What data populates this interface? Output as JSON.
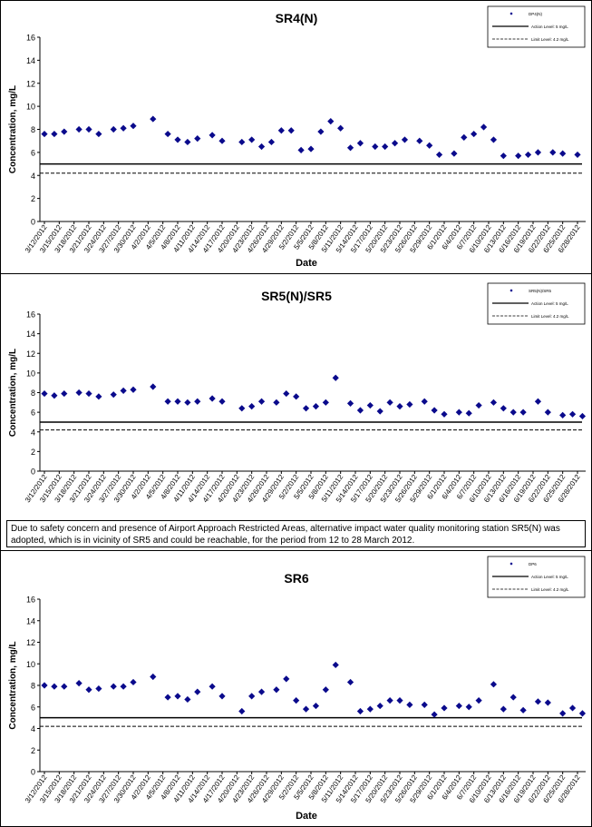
{
  "note": "Due to safety concern and presence of Airport Approach Restricted Areas, alternative impact water quality monitoring station SR5(N) was adopted, which is in vicinity of SR5 and could be reachable, for the period from 12 to 28 March 2012.",
  "colors": {
    "marker": "#0a0a8c",
    "line": "#000000",
    "frame": "#000000"
  },
  "chart_data": [
    {
      "type": "scatter",
      "title": "SR4(N)",
      "xlabel": "Date",
      "ylabel": "Concentration, mg/L",
      "ylim": [
        0,
        16
      ],
      "yticks": [
        0,
        2,
        4,
        6,
        8,
        10,
        12,
        14,
        16
      ],
      "grid": false,
      "legend_position": "top-right",
      "legend": [
        "DP4(N)",
        "Action Level: 5 mg/L",
        "Limit Level: 4.2 mg/L"
      ],
      "action_level": 5,
      "limit_level": 4.2,
      "x_ticks": [
        "3/12/2012",
        "3/15/2012",
        "3/18/2012",
        "3/21/2012",
        "3/24/2012",
        "3/27/2012",
        "3/30/2012",
        "4/2/2012",
        "4/5/2012",
        "4/8/2012",
        "4/11/2012",
        "4/14/2012",
        "4/17/2012",
        "4/20/2012",
        "4/23/2012",
        "4/26/2012",
        "4/29/2012",
        "5/2/2012",
        "5/5/2012",
        "5/8/2012",
        "5/11/2012",
        "5/14/2012",
        "5/17/2012",
        "5/20/2012",
        "5/23/2012",
        "5/26/2012",
        "5/29/2012",
        "6/1/2012",
        "6/4/2012",
        "6/7/2012",
        "6/10/2012",
        "6/13/2012",
        "6/16/2012",
        "6/19/2012",
        "6/22/2012",
        "6/25/2012",
        "6/28/2012"
      ],
      "series": [
        {
          "name": "DP4(N)",
          "x": [
            "3/12/2012",
            "3/14/2012",
            "3/16/2012",
            "3/19/2012",
            "3/21/2012",
            "3/23/2012",
            "3/26/2012",
            "3/28/2012",
            "3/30/2012",
            "4/3/2012",
            "4/6/2012",
            "4/8/2012",
            "4/10/2012",
            "4/12/2012",
            "4/15/2012",
            "4/17/2012",
            "4/21/2012",
            "4/23/2012",
            "4/25/2012",
            "4/27/2012",
            "4/29/2012",
            "5/1/2012",
            "5/3/2012",
            "5/5/2012",
            "5/7/2012",
            "5/9/2012",
            "5/11/2012",
            "5/13/2012",
            "5/15/2012",
            "5/18/2012",
            "5/20/2012",
            "5/22/2012",
            "5/24/2012",
            "5/27/2012",
            "5/29/2012",
            "5/31/2012",
            "6/3/2012",
            "6/5/2012",
            "6/7/2012",
            "6/9/2012",
            "6/11/2012",
            "6/13/2012",
            "6/16/2012",
            "6/18/2012",
            "6/20/2012",
            "6/23/2012",
            "6/25/2012",
            "6/28/2012"
          ],
          "values": [
            7.6,
            7.6,
            7.8,
            8.0,
            8.0,
            7.6,
            8.0,
            8.1,
            8.3,
            8.9,
            7.6,
            7.1,
            6.9,
            7.2,
            7.5,
            7.0,
            6.9,
            7.1,
            6.5,
            6.9,
            7.9,
            7.9,
            6.2,
            6.3,
            7.8,
            8.7,
            8.1,
            6.4,
            6.8,
            6.5,
            6.5,
            6.8,
            7.1,
            7.0,
            6.6,
            5.8,
            5.9,
            7.3,
            7.6,
            8.2,
            7.1,
            5.7,
            5.7,
            5.8,
            6.0,
            6.0,
            5.9,
            5.8
          ]
        }
      ]
    },
    {
      "type": "scatter",
      "title": "SR5(N)/SR5",
      "xlabel": "",
      "ylabel": "Concentration, mg/L",
      "ylim": [
        0,
        16
      ],
      "yticks": [
        0,
        2,
        4,
        6,
        8,
        10,
        12,
        14,
        16
      ],
      "grid": false,
      "legend_position": "top-right",
      "legend": [
        "SR5(N)/SR5",
        "Action Level: 5 mg/L",
        "Limit Level: 4.2 mg/L"
      ],
      "action_level": 5,
      "limit_level": 4.2,
      "x_ticks": [
        "3/12/2012",
        "3/15/2012",
        "3/18/2012",
        "3/21/2012",
        "3/24/2012",
        "3/27/2012",
        "3/30/2012",
        "4/2/2012",
        "4/5/2012",
        "4/8/2012",
        "4/11/2012",
        "4/14/2012",
        "4/17/2012",
        "4/20/2012",
        "4/23/2012",
        "4/26/2012",
        "4/29/2012",
        "5/2/2012",
        "5/5/2012",
        "5/8/2012",
        "5/11/2012",
        "5/14/2012",
        "5/17/2012",
        "5/20/2012",
        "5/23/2012",
        "5/26/2012",
        "5/29/2012",
        "6/1/2012",
        "6/4/2012",
        "6/7/2012",
        "6/10/2012",
        "6/13/2012",
        "6/16/2012",
        "6/19/2012",
        "6/22/2012",
        "6/25/2012",
        "6/28/2012"
      ],
      "series": [
        {
          "name": "SR5(N)/SR5",
          "x": [
            "3/12/2012",
            "3/14/2012",
            "3/16/2012",
            "3/19/2012",
            "3/21/2012",
            "3/23/2012",
            "3/26/2012",
            "3/28/2012",
            "3/30/2012",
            "4/3/2012",
            "4/6/2012",
            "4/8/2012",
            "4/10/2012",
            "4/12/2012",
            "4/15/2012",
            "4/17/2012",
            "4/21/2012",
            "4/23/2012",
            "4/25/2012",
            "4/28/2012",
            "4/30/2012",
            "5/2/2012",
            "5/4/2012",
            "5/6/2012",
            "5/8/2012",
            "5/10/2012",
            "5/13/2012",
            "5/15/2012",
            "5/17/2012",
            "5/19/2012",
            "5/21/2012",
            "5/23/2012",
            "5/25/2012",
            "5/28/2012",
            "5/30/2012",
            "6/1/2012",
            "6/4/2012",
            "6/6/2012",
            "6/8/2012",
            "6/11/2012",
            "6/13/2012",
            "6/15/2012",
            "6/17/2012",
            "6/20/2012",
            "6/22/2012",
            "6/25/2012",
            "6/27/2012",
            "6/29/2012"
          ],
          "values": [
            7.9,
            7.7,
            7.9,
            8.0,
            7.9,
            7.6,
            7.8,
            8.2,
            8.3,
            8.6,
            7.1,
            7.1,
            7.0,
            7.1,
            7.4,
            7.1,
            6.4,
            6.6,
            7.1,
            7.0,
            7.9,
            7.6,
            6.4,
            6.6,
            7.0,
            9.5,
            6.9,
            6.2,
            6.7,
            6.1,
            7.0,
            6.6,
            6.8,
            7.1,
            6.2,
            5.8,
            6.0,
            5.9,
            6.7,
            7.0,
            6.4,
            6.0,
            6.0,
            7.1,
            6.0,
            5.7,
            5.8,
            5.6
          ]
        }
      ]
    },
    {
      "type": "scatter",
      "title": "SR6",
      "xlabel": "Date",
      "ylabel": "Concentration, mg/L",
      "ylim": [
        0,
        16
      ],
      "yticks": [
        0,
        2,
        4,
        6,
        8,
        10,
        12,
        14,
        16
      ],
      "grid": false,
      "legend_position": "top-right",
      "legend": [
        "DP6",
        "Action Level: 5 mg/L",
        "Limit Level: 4.2 mg/L"
      ],
      "action_level": 5,
      "limit_level": 4.2,
      "x_ticks": [
        "3/12/2012",
        "3/15/2012",
        "3/18/2012",
        "3/21/2012",
        "3/24/2012",
        "3/27/2012",
        "3/30/2012",
        "4/2/2012",
        "4/5/2012",
        "4/8/2012",
        "4/11/2012",
        "4/14/2012",
        "4/17/2012",
        "4/20/2012",
        "4/23/2012",
        "4/26/2012",
        "4/29/2012",
        "5/2/2012",
        "5/5/2012",
        "5/8/2012",
        "5/11/2012",
        "5/14/2012",
        "5/17/2012",
        "5/20/2012",
        "5/23/2012",
        "5/26/2012",
        "5/29/2012",
        "6/1/2012",
        "6/4/2012",
        "6/7/2012",
        "6/10/2012",
        "6/13/2012",
        "6/16/2012",
        "6/19/2012",
        "6/22/2012",
        "6/25/2012",
        "6/28/2012"
      ],
      "series": [
        {
          "name": "DP6",
          "x": [
            "3/12/2012",
            "3/14/2012",
            "3/16/2012",
            "3/19/2012",
            "3/21/2012",
            "3/23/2012",
            "3/26/2012",
            "3/28/2012",
            "3/30/2012",
            "4/3/2012",
            "4/6/2012",
            "4/8/2012",
            "4/10/2012",
            "4/12/2012",
            "4/15/2012",
            "4/17/2012",
            "4/21/2012",
            "4/23/2012",
            "4/25/2012",
            "4/28/2012",
            "4/30/2012",
            "5/2/2012",
            "5/4/2012",
            "5/6/2012",
            "5/8/2012",
            "5/10/2012",
            "5/13/2012",
            "5/15/2012",
            "5/17/2012",
            "5/19/2012",
            "5/21/2012",
            "5/23/2012",
            "5/25/2012",
            "5/28/2012",
            "5/30/2012",
            "6/1/2012",
            "6/4/2012",
            "6/6/2012",
            "6/8/2012",
            "6/11/2012",
            "6/13/2012",
            "6/15/2012",
            "6/17/2012",
            "6/20/2012",
            "6/22/2012",
            "6/25/2012",
            "6/27/2012",
            "6/29/2012"
          ],
          "values": [
            8.0,
            7.9,
            7.9,
            8.2,
            7.6,
            7.7,
            7.9,
            7.9,
            8.3,
            8.8,
            6.9,
            7.0,
            6.7,
            7.4,
            7.9,
            7.0,
            5.6,
            7.0,
            7.4,
            7.6,
            8.6,
            6.6,
            5.8,
            6.1,
            7.6,
            9.9,
            8.3,
            5.6,
            5.8,
            6.1,
            6.6,
            6.6,
            6.2,
            6.2,
            5.3,
            5.9,
            6.1,
            6.0,
            6.6,
            8.1,
            5.8,
            6.9,
            5.7,
            6.5,
            6.4,
            5.4,
            5.9,
            5.4
          ]
        }
      ]
    }
  ]
}
